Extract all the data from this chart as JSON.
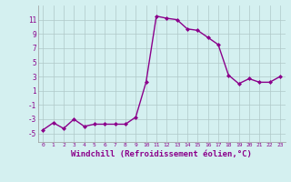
{
  "x": [
    0,
    1,
    2,
    3,
    4,
    5,
    6,
    7,
    8,
    9,
    10,
    11,
    12,
    13,
    14,
    15,
    16,
    17,
    18,
    19,
    20,
    21,
    22,
    23
  ],
  "y": [
    -4.5,
    -3.5,
    -4.3,
    -3.0,
    -4.0,
    -3.7,
    -3.7,
    -3.7,
    -3.7,
    -2.7,
    2.2,
    11.5,
    11.2,
    11.0,
    9.7,
    9.5,
    8.5,
    7.5,
    3.2,
    2.0,
    2.7,
    2.2,
    2.2,
    3.0
  ],
  "line_color": "#8b008b",
  "marker": "D",
  "marker_size": 2.0,
  "linewidth": 1.0,
  "xlabel": "Windchill (Refroidissement éolien,°C)",
  "xlabel_fontsize": 6.5,
  "ylabel_ticks": [
    -5,
    -3,
    -1,
    1,
    3,
    5,
    7,
    9,
    11
  ],
  "ylim": [
    -6.2,
    13.0
  ],
  "xlim": [
    -0.5,
    23.5
  ],
  "xtick_labels": [
    "0",
    "1",
    "2",
    "3",
    "4",
    "5",
    "6",
    "7",
    "8",
    "9",
    "10",
    "11",
    "12",
    "13",
    "14",
    "15",
    "16",
    "17",
    "18",
    "19",
    "20",
    "21",
    "22",
    "23"
  ],
  "bg_color": "#d4f0f0",
  "grid_color": "#b0c8c8",
  "tick_color": "#8b008b",
  "label_color": "#8b008b"
}
